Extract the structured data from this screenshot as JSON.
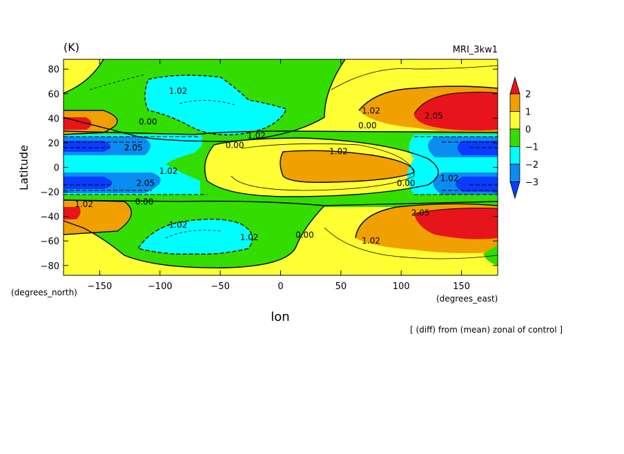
{
  "chart_data": {
    "type": "heatmap",
    "title": "",
    "units_label": "(K)",
    "model_label": "MRI_3kw1",
    "xlabel": "lon",
    "ylabel": "Latitude",
    "x_units": "(degrees_east)",
    "y_units": "(degrees_north)",
    "footnote": "[ (diff) from (mean) zonal of control ]",
    "xlim": [
      -180,
      180
    ],
    "ylim": [
      -88,
      88
    ],
    "x_ticks": [
      -150,
      -100,
      -50,
      0,
      50,
      100,
      150
    ],
    "y_ticks": [
      -80,
      -60,
      -40,
      -20,
      0,
      20,
      40,
      60,
      80
    ],
    "colorbar": {
      "labels": [
        "2",
        "1",
        "0",
        "−1",
        "−2",
        "−3"
      ],
      "levels": [
        2,
        1,
        0,
        -1,
        -2,
        -3
      ],
      "colors": [
        "#e8141c",
        "#f0a000",
        "#ffff33",
        "#33dd00",
        "#00ffff",
        "#0a8cf0",
        "#0a3cff",
        "#ff2020"
      ],
      "extend": "both"
    },
    "contour_labels": [
      {
        "text": "1.02",
        "lon": -85,
        "lat": 62
      },
      {
        "text": "0.00",
        "lon": -110,
        "lat": 37
      },
      {
        "text": "1.02",
        "lon": 75,
        "lat": 46
      },
      {
        "text": "2.05",
        "lon": 127,
        "lat": 42
      },
      {
        "text": "0.00",
        "lon": 72,
        "lat": 34
      },
      {
        "text": "1.02",
        "lon": -20,
        "lat": 26
      },
      {
        "text": "2.05",
        "lon": -122,
        "lat": 16
      },
      {
        "text": "0.00",
        "lon": -38,
        "lat": 18
      },
      {
        "text": "1.02",
        "lon": 48,
        "lat": 13
      },
      {
        "text": "1.02",
        "lon": -93,
        "lat": -3
      },
      {
        "text": "2.05",
        "lon": -112,
        "lat": -13
      },
      {
        "text": "0.00",
        "lon": 104,
        "lat": -13
      },
      {
        "text": "1.02",
        "lon": 140,
        "lat": -9
      },
      {
        "text": "1.02",
        "lon": -163,
        "lat": -30
      },
      {
        "text": "0.00",
        "lon": -113,
        "lat": -28
      },
      {
        "text": "2.05",
        "lon": 116,
        "lat": -37
      },
      {
        "text": "1.02",
        "lon": -85,
        "lat": -47
      },
      {
        "text": "1.02",
        "lon": -26,
        "lat": -57
      },
      {
        "text": "0.00",
        "lon": 20,
        "lat": -55
      },
      {
        "text": "1.02",
        "lon": 75,
        "lat": -60
      }
    ],
    "regions": [
      {
        "level": "0 to 1",
        "color": "#ffff33",
        "lon": [
          -180,
          180
        ],
        "lat": [
          -88,
          88
        ]
      },
      {
        "level": "-1 to 0",
        "color": "#33dd00",
        "lon": [
          -180,
          180
        ],
        "lat": [
          -24,
          24
        ]
      },
      {
        "level": "0 to 1",
        "color": "#ffff33",
        "lon": [
          -60,
          110
        ],
        "lat": [
          -20,
          20
        ]
      },
      {
        "level": "1 to 2",
        "color": "#f0a000",
        "lon": [
          0,
          95
        ],
        "lat": [
          -12,
          12
        ]
      },
      {
        "level": "-1 to 0",
        "color": "#33dd00",
        "lon": [
          -150,
          40
        ],
        "lat": [
          24,
          88
        ]
      },
      {
        "level": "-2 to -1",
        "color": "#00ffff",
        "lon": [
          -115,
          -35
        ],
        "lat": [
          25,
          72
        ]
      },
      {
        "level": "1 to 2",
        "color": "#f0a000",
        "lon": [
          90,
          180
        ],
        "lat": [
          30,
          60
        ]
      },
      {
        "level": "above 2",
        "color": "#e8141c",
        "lon": [
          115,
          180
        ],
        "lat": [
          32,
          50
        ]
      },
      {
        "level": "-1 to 0",
        "color": "#33dd00",
        "lon": [
          -120,
          20
        ],
        "lat": [
          -75,
          -25
        ]
      },
      {
        "level": "-2 to -1",
        "color": "#00ffff",
        "lon": [
          -100,
          -35
        ],
        "lat": [
          -70,
          -45
        ]
      },
      {
        "level": "1 to 2",
        "color": "#f0a000",
        "lon": [
          75,
          175
        ],
        "lat": [
          -65,
          -25
        ]
      },
      {
        "level": "above 2",
        "color": "#e8141c",
        "lon": [
          110,
          175
        ],
        "lat": [
          -55,
          -30
        ]
      },
      {
        "level": "-3 to -2",
        "color": "#0a8cf0",
        "lon": [
          -180,
          -130
        ],
        "lat": [
          -28,
          28
        ]
      },
      {
        "level": "-3 to -2",
        "color": "#0a8cf0",
        "lon": [
          110,
          180
        ],
        "lat": [
          -28,
          28
        ]
      }
    ]
  }
}
